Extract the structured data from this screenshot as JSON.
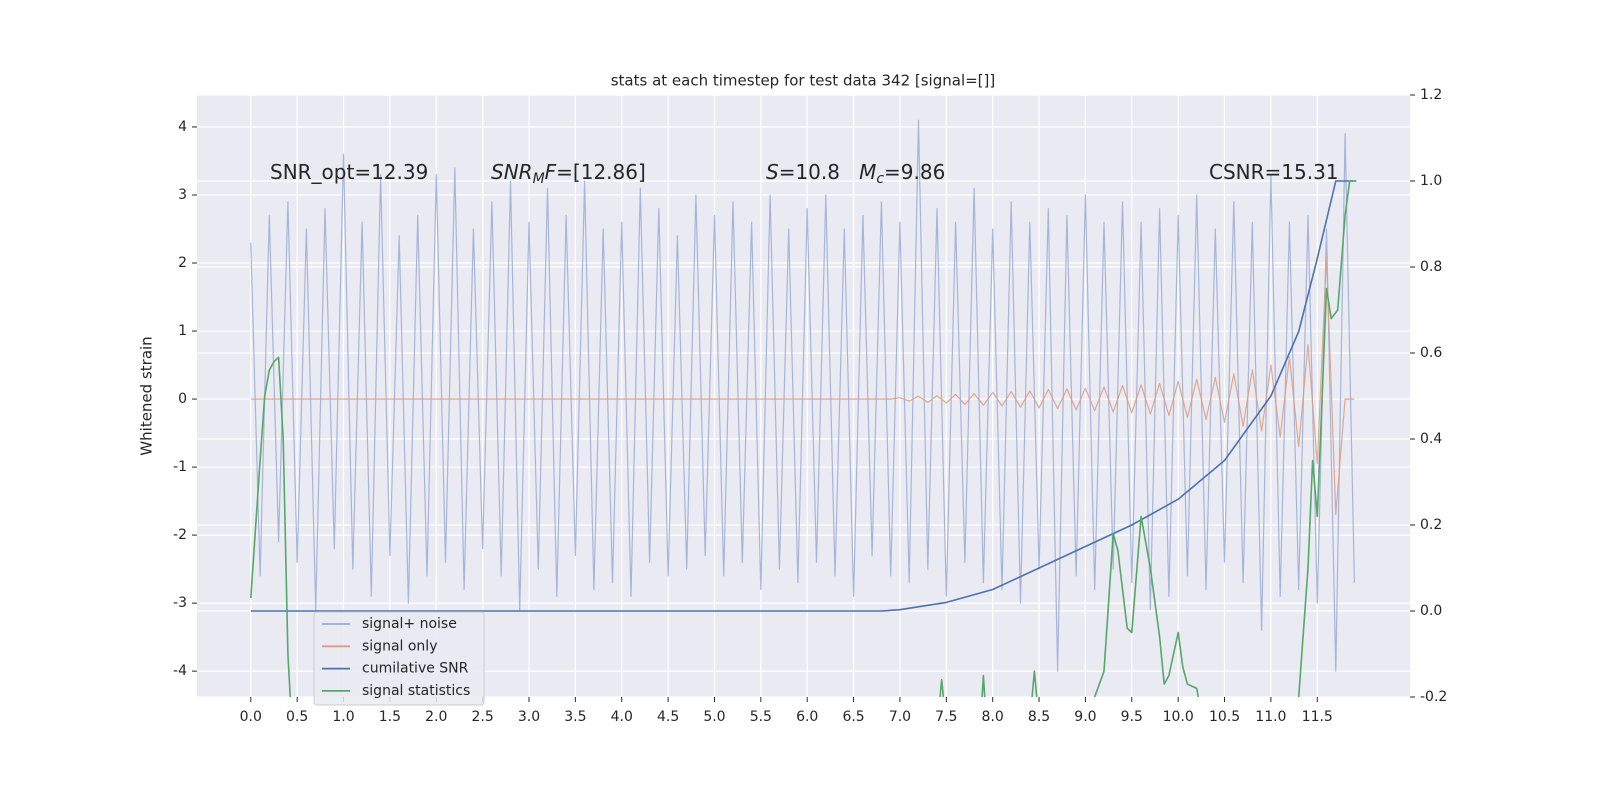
{
  "chart_data": {
    "type": "line",
    "title": "stats at each timestep for test data 342 [signal=[]]",
    "ylabel": "Whitened strain",
    "xlim": [
      -0.58,
      12.5
    ],
    "ylim": [
      -4.38,
      4.47
    ],
    "y2lim": [
      -0.2,
      1.2
    ],
    "grid": true,
    "legend": "lower left",
    "xticks": [
      {
        "value": 0,
        "label": "0.0"
      },
      0.5,
      {
        "value": 1,
        "label": "1.0"
      },
      1.5,
      {
        "value": 2,
        "label": "2.0"
      },
      2.5,
      {
        "value": 3,
        "label": "3.0"
      },
      3.5,
      {
        "value": 4,
        "label": "4.0"
      },
      4.5,
      {
        "value": 5,
        "label": "5.0"
      },
      5.5,
      {
        "value": 6,
        "label": "6.0"
      },
      6.5,
      {
        "value": 7,
        "label": "7.0"
      },
      7.5,
      {
        "value": 8,
        "label": "8.0"
      },
      8.5,
      {
        "value": 9,
        "label": "9.0"
      },
      9.5,
      {
        "value": 10,
        "label": "10.0"
      },
      10.5,
      {
        "value": 11,
        "label": "11.0"
      },
      11.5
    ],
    "yticks": [
      -4,
      -3,
      -2,
      -1,
      0,
      1,
      2,
      3,
      4
    ],
    "y2ticks": [
      -0.2,
      {
        "value": 0,
        "label": "0.0"
      },
      0.2,
      0.4,
      0.6,
      0.8,
      {
        "value": 1,
        "label": "1.0"
      },
      1.2
    ],
    "annotations": [
      [
        {
          "text": "SNR_opt=12.39"
        }
      ],
      [
        {
          "text": "SNR",
          "italic": true
        },
        {
          "text": "M",
          "italic": true,
          "sub": true
        },
        {
          "text": "F",
          "italic": true
        },
        {
          "text": "=[12.86]"
        }
      ],
      [
        {
          "text": "S",
          "italic": true
        },
        {
          "text": "=10.8   "
        },
        {
          "text": "M",
          "italic": true
        },
        {
          "text": "c",
          "italic": true,
          "sub": true
        },
        {
          "text": "=9.86"
        }
      ],
      [
        {
          "text": "CSNR=15.31"
        }
      ]
    ],
    "x": [
      0,
      0.1,
      0.2,
      0.3,
      0.4,
      0.5,
      0.6,
      0.7,
      0.8,
      0.9,
      1,
      1.1,
      1.2,
      1.3,
      1.4,
      1.5,
      1.6,
      1.7,
      1.8,
      1.9,
      2,
      2.1,
      2.2,
      2.3,
      2.4,
      2.5,
      2.6,
      2.7,
      2.8,
      2.9,
      3,
      3.1,
      3.2,
      3.3,
      3.4,
      3.5,
      3.6,
      3.7,
      3.8,
      3.9,
      4,
      4.1,
      4.2,
      4.3,
      4.4,
      4.5,
      4.6,
      4.7,
      4.8,
      4.9,
      5,
      5.1,
      5.2,
      5.3,
      5.4,
      5.5,
      5.6,
      5.7,
      5.8,
      5.9,
      6,
      6.1,
      6.2,
      6.3,
      6.4,
      6.5,
      6.6,
      6.7,
      6.8,
      6.9,
      7,
      7.1,
      7.2,
      7.3,
      7.4,
      7.5,
      7.6,
      7.7,
      7.8,
      7.9,
      8,
      8.1,
      8.2,
      8.3,
      8.4,
      8.5,
      8.6,
      8.7,
      8.8,
      8.9,
      9,
      9.1,
      9.2,
      9.3,
      9.4,
      9.5,
      9.6,
      9.7,
      9.8,
      9.9,
      10,
      10.1,
      10.2,
      10.3,
      10.4,
      10.5,
      10.6,
      10.7,
      10.8,
      10.9,
      11,
      11.1,
      11.2,
      11.3,
      11.4,
      11.5,
      11.6,
      11.7,
      11.8,
      11.9
    ],
    "series": [
      {
        "name": "signal+ noise",
        "color": "#9aabd3",
        "values": [
          2.3,
          -2.6,
          2.7,
          -2.1,
          2.9,
          -2.4,
          2.5,
          -3.1,
          2.8,
          -2.2,
          3.6,
          -2.5,
          2.6,
          -2.9,
          3.3,
          -2.3,
          2.4,
          -3.0,
          2.7,
          -2.6,
          3.3,
          -2.4,
          3.4,
          -2.8,
          2.5,
          -2.2,
          2.9,
          -2.6,
          3.2,
          -3.1,
          2.6,
          -2.5,
          3.1,
          -2.9,
          2.7,
          -2.3,
          3.2,
          -2.8,
          2.5,
          -2.7,
          2.6,
          -2.9,
          3.1,
          -2.4,
          2.8,
          -2.6,
          2.4,
          -2.5,
          3.0,
          -2.3,
          2.7,
          -2.6,
          2.9,
          -2.4,
          2.6,
          -2.8,
          3.0,
          -2.5,
          2.5,
          -2.7,
          2.8,
          -2.4,
          3.0,
          -2.6,
          2.5,
          -2.9,
          2.7,
          -2.3,
          2.9,
          -2.6,
          2.6,
          -2.7,
          4.1,
          -2.5,
          2.8,
          -2.9,
          2.6,
          -2.4,
          3.1,
          -2.7,
          2.5,
          -2.8,
          2.9,
          -3.0,
          2.6,
          -2.5,
          2.8,
          -4.0,
          2.7,
          -2.6,
          3.0,
          -2.8,
          2.6,
          -2.5,
          2.9,
          -2.7,
          2.6,
          -3.1,
          2.8,
          -2.9,
          2.7,
          -2.6,
          3.0,
          -2.8,
          2.5,
          -2.4,
          2.9,
          -2.7,
          2.6,
          -3.4,
          3.3,
          -2.9,
          2.6,
          -2.8,
          2.7,
          -3.0,
          2.5,
          -4.0,
          3.9,
          -2.7
        ]
      },
      {
        "name": "signal only",
        "color": "#dd9c80",
        "values": [
          0,
          0,
          0,
          0,
          0,
          0,
          0,
          0,
          0,
          0,
          0,
          0,
          0,
          0,
          0,
          0,
          0,
          0,
          0,
          0,
          0,
          0,
          0,
          0,
          0,
          0,
          0,
          0,
          0,
          0,
          0,
          0,
          0,
          0,
          0,
          0,
          0,
          0,
          0,
          0,
          0,
          0,
          0,
          0,
          0,
          0,
          0,
          0,
          0,
          0,
          0,
          0,
          0,
          0,
          0,
          0,
          0,
          0,
          0,
          0,
          0,
          0,
          0,
          0,
          0,
          0,
          0,
          0,
          0,
          0,
          0.02,
          -0.03,
          0.04,
          -0.05,
          0.05,
          -0.06,
          0.07,
          -0.08,
          0.08,
          -0.09,
          0.1,
          -0.1,
          0.11,
          -0.12,
          0.12,
          -0.13,
          0.14,
          -0.14,
          0.15,
          -0.16,
          0.16,
          -0.17,
          0.18,
          -0.19,
          0.2,
          -0.2,
          0.21,
          -0.22,
          0.23,
          -0.24,
          0.26,
          -0.27,
          0.29,
          -0.3,
          0.32,
          -0.34,
          0.37,
          -0.4,
          0.43,
          -0.47,
          0.5,
          -0.56,
          0.62,
          -0.7,
          0.8,
          -0.95,
          2.1,
          -1.7,
          0,
          0
        ]
      },
      {
        "name": "cumilative SNR",
        "color": "#4c72b0",
        "axis": "y2",
        "x": [
          0,
          6.8,
          7.0,
          7.5,
          8.0,
          8.5,
          9.0,
          9.5,
          10.0,
          10.5,
          11.0,
          11.3,
          11.5,
          11.7,
          11.92
        ],
        "values": [
          0,
          0,
          0.003,
          0.02,
          0.05,
          0.1,
          0.15,
          0.2,
          0.26,
          0.35,
          0.5,
          0.65,
          0.82,
          1.0,
          1.0
        ]
      },
      {
        "name": "signal statistics",
        "color": "#55a868",
        "axis": "y2",
        "x": [
          0,
          0.1,
          0.15,
          0.2,
          0.25,
          0.3,
          0.35,
          0.4,
          0.5,
          7.3,
          7.45,
          7.6,
          7.8,
          7.9,
          8.0,
          8.3,
          8.45,
          8.6,
          9.1,
          9.2,
          9.3,
          9.35,
          9.45,
          9.5,
          9.6,
          9.7,
          9.8,
          9.85,
          9.9,
          10.0,
          10.05,
          10.1,
          10.2,
          10.3,
          11.2,
          11.3,
          11.4,
          11.45,
          11.5,
          11.6,
          11.65,
          11.72,
          11.8,
          11.85,
          11.92
        ],
        "values": [
          0.03,
          0.35,
          0.5,
          0.56,
          0.58,
          0.59,
          0.4,
          -0.1,
          -0.5,
          -0.5,
          -0.16,
          -0.5,
          -0.5,
          -0.15,
          -0.5,
          -0.5,
          -0.14,
          -0.5,
          -0.2,
          -0.14,
          0.18,
          0.14,
          -0.04,
          -0.05,
          0.22,
          0.1,
          -0.06,
          -0.17,
          -0.15,
          -0.05,
          -0.13,
          -0.17,
          -0.18,
          -0.3,
          -0.5,
          -0.2,
          0.1,
          0.35,
          0.22,
          0.75,
          0.68,
          0.7,
          0.92,
          1.0,
          1.0
        ]
      }
    ]
  }
}
